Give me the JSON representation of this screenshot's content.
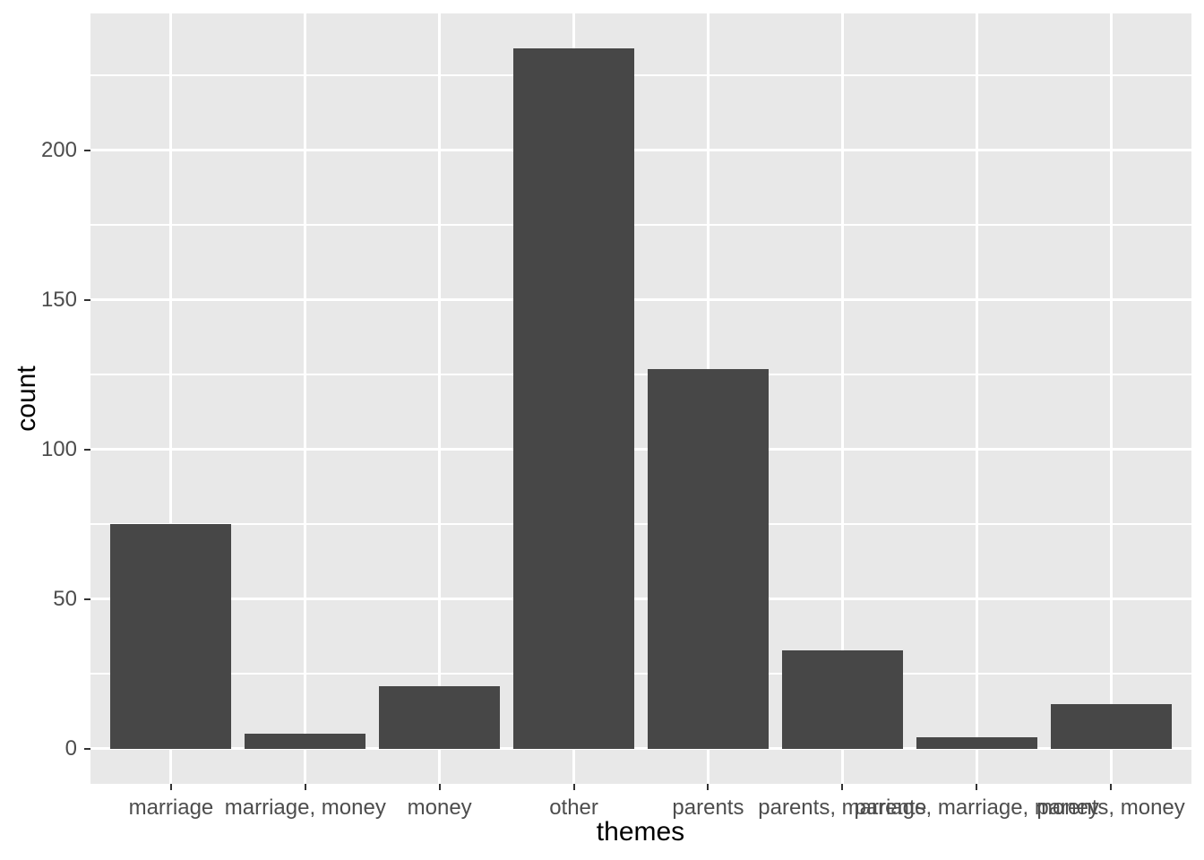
{
  "figure": {
    "kind": "ggplot-style statistical bar chart",
    "title": ""
  },
  "chart_data": {
    "type": "bar",
    "title": "",
    "xlabel": "themes",
    "ylabel": "count",
    "categories": [
      "marriage",
      "marriage, money",
      "money",
      "other",
      "parents",
      "parents, marriage",
      "parents, marriage, money",
      "parents, money"
    ],
    "values": [
      75,
      5,
      21,
      234,
      127,
      33,
      4,
      15
    ],
    "y_major_ticks": [
      0,
      50,
      100,
      150,
      200
    ],
    "y_minor_ticks": [
      25,
      75,
      125,
      175,
      225
    ],
    "ylim": [
      -11.7,
      245.7
    ],
    "grid": true,
    "legend": false,
    "bar_width_fraction": 0.9,
    "x_expand": 0.6,
    "style": {
      "bar_fill": "#474747",
      "panel_bg": "#E8E8E8",
      "grid_color": "#FFFFFF",
      "tick_label_color": "#4D4D4D",
      "axis_title_color": "#000000",
      "tick_mark_color": "#333333",
      "figure_bg": "#FFFFFF"
    }
  }
}
